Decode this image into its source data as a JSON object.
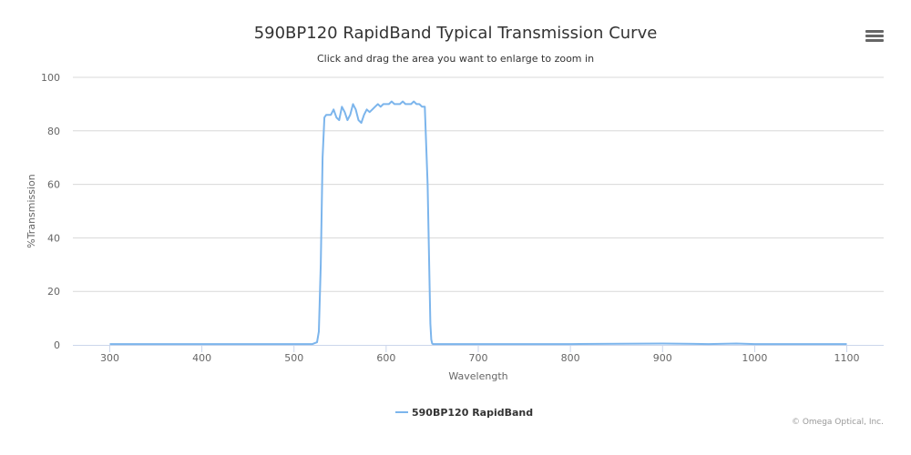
{
  "chart_data": {
    "type": "line",
    "title": "590BP120 RapidBand Typical Transmission Curve",
    "subtitle": "Click and drag the area you want to enlarge to zoom in",
    "xlabel": "Wavelength",
    "ylabel": "%Transmission",
    "xlim": [
      260,
      1140
    ],
    "ylim": [
      0,
      100
    ],
    "x_ticks": [
      300,
      400,
      500,
      600,
      700,
      800,
      900,
      1000,
      1100
    ],
    "y_ticks": [
      0,
      20,
      40,
      60,
      80,
      100
    ],
    "grid": "horizontal",
    "legend_position": "bottom-center",
    "series": [
      {
        "name": "590BP120 RapidBand",
        "color": "#7cb5ec",
        "x": [
          300,
          400,
          500,
          520,
          525,
          527,
          529,
          531,
          533,
          535,
          537,
          540,
          543,
          546,
          549,
          552,
          555,
          558,
          561,
          564,
          567,
          570,
          573,
          576,
          579,
          582,
          585,
          588,
          591,
          594,
          597,
          600,
          603,
          606,
          609,
          612,
          615,
          618,
          621,
          624,
          627,
          630,
          633,
          636,
          639,
          642,
          645,
          647,
          648,
          649,
          650,
          651,
          652,
          654,
          657,
          660,
          700,
          800,
          900,
          950,
          980,
          1000,
          1050,
          1100
        ],
        "y": [
          0.3,
          0.3,
          0.3,
          0.3,
          1,
          5,
          30,
          70,
          85,
          86,
          86,
          86,
          88,
          85,
          84,
          89,
          87,
          84,
          86,
          90,
          88,
          84,
          83,
          86,
          88,
          87,
          88,
          89,
          90,
          89,
          90,
          90,
          90,
          91,
          90,
          90,
          90,
          91,
          90,
          90,
          90,
          91,
          90,
          90,
          89,
          89,
          60,
          25,
          8,
          2,
          0.5,
          0.3,
          0.3,
          0.3,
          0.3,
          0.3,
          0.3,
          0.3,
          0.5,
          0.3,
          0.5,
          0.3,
          0.3,
          0.3
        ]
      }
    ]
  },
  "credit": "© Omega Optical, Inc."
}
